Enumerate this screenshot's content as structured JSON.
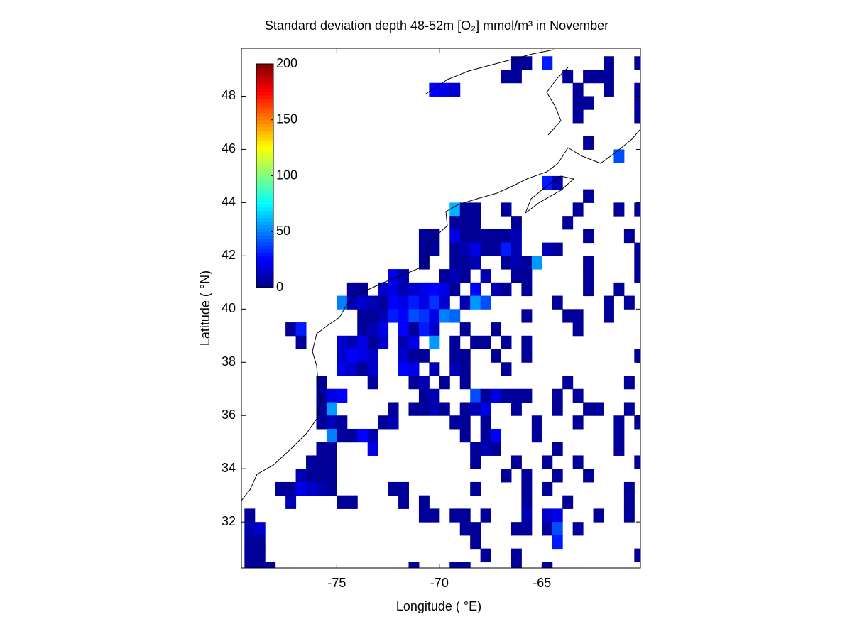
{
  "chart_data": {
    "type": "heatmap",
    "title": "Standard deviation depth 48-52m [O₂] mmol/m³ in November",
    "x_label": "Longitude ( °E)",
    "y_label": "Latitude ( °N)",
    "xlim": [
      -79.65,
      -60.2
    ],
    "ylim": [
      30.27,
      49.8
    ],
    "xticks": [
      -75,
      -70,
      -65
    ],
    "yticks": [
      32,
      34,
      36,
      38,
      40,
      42,
      44,
      46,
      48
    ],
    "clim": [
      0,
      200
    ],
    "cticks": [
      0,
      50,
      100,
      150,
      200
    ],
    "colormap": "jet",
    "rows": [
      {
        "lat": 49.25,
        "lon": [
          -66.25,
          -65.75,
          -64.75,
          -61.75,
          -60.25
        ],
        "values": [
          5,
          5,
          30,
          5,
          5
        ]
      },
      {
        "lat": 48.75,
        "lon": [
          -66.75,
          -66.25,
          -63.75,
          -62.75,
          -62.25,
          -61.75
        ],
        "values": [
          5,
          5,
          5,
          5,
          5,
          5
        ]
      },
      {
        "lat": 48.25,
        "lon": [
          -70.25,
          -69.75,
          -69.25,
          -63.25,
          -61.75,
          -60.25
        ],
        "values": [
          25,
          20,
          15,
          5,
          5,
          5
        ]
      },
      {
        "lat": 47.75,
        "lon": [
          -63.25,
          -62.75,
          -60.25
        ],
        "values": [
          5,
          5,
          5
        ]
      },
      {
        "lat": 47.25,
        "lon": [
          -63.25,
          -60.25
        ],
        "values": [
          5,
          5
        ]
      },
      {
        "lat": 46.25,
        "lon": [
          -62.75
        ],
        "values": [
          5
        ]
      },
      {
        "lat": 45.75,
        "lon": [
          -61.25
        ],
        "values": [
          40
        ]
      },
      {
        "lat": 44.75,
        "lon": [
          -64.75,
          -64.25
        ],
        "values": [
          30,
          10
        ]
      },
      {
        "lat": 44.25,
        "lon": [
          -62.75
        ],
        "values": [
          5
        ]
      },
      {
        "lat": 43.75,
        "lon": [
          -69.25,
          -68.75,
          -68.25,
          -66.75,
          -63.25,
          -61.25,
          -60.25
        ],
        "values": [
          60,
          5,
          5,
          5,
          5,
          5,
          5
        ]
      },
      {
        "lat": 43.25,
        "lon": [
          -69.25,
          -68.75,
          -68.25,
          -66.25,
          -63.75
        ],
        "values": [
          5,
          5,
          5,
          5,
          5
        ]
      },
      {
        "lat": 42.75,
        "lon": [
          -70.75,
          -70.25,
          -69.25,
          -68.75,
          -68.25,
          -67.75,
          -67.25,
          -66.75,
          -66.25,
          -62.75,
          -60.75
        ],
        "values": [
          5,
          5,
          20,
          5,
          5,
          5,
          5,
          5,
          10,
          5,
          5
        ]
      },
      {
        "lat": 42.25,
        "lon": [
          -70.75,
          -70.25,
          -69.25,
          -68.75,
          -68.25,
          -67.75,
          -67.25,
          -66.75,
          -66.25,
          -64.75,
          -64.25,
          -60.25
        ],
        "values": [
          5,
          5,
          5,
          10,
          20,
          5,
          5,
          30,
          10,
          10,
          5,
          5
        ]
      },
      {
        "lat": 41.75,
        "lon": [
          -70.75,
          -69.25,
          -68.75,
          -68.25,
          -66.75,
          -66.25,
          -65.75,
          -65.25,
          -62.75,
          -60.25
        ],
        "values": [
          5,
          5,
          5,
          10,
          5,
          10,
          5,
          55,
          5,
          5
        ]
      },
      {
        "lat": 41.25,
        "lon": [
          -72.25,
          -71.75,
          -69.75,
          -69.25,
          -68.75,
          -67.75,
          -66.25,
          -65.75,
          -62.75,
          -60.25
        ],
        "values": [
          20,
          10,
          5,
          10,
          5,
          10,
          5,
          5,
          5,
          5
        ]
      },
      {
        "lat": 40.75,
        "lon": [
          -74.25,
          -73.75,
          -72.75,
          -72.25,
          -71.75,
          -71.25,
          -70.75,
          -70.25,
          -69.75,
          -69.25,
          -68.25,
          -67.25,
          -66.75,
          -65.75,
          -62.75,
          -61.25
        ],
        "values": [
          5,
          5,
          15,
          20,
          10,
          15,
          20,
          25,
          20,
          5,
          25,
          10,
          5,
          5,
          5,
          5
        ]
      },
      {
        "lat": 40.25,
        "lon": [
          -74.75,
          -74.25,
          -73.75,
          -73.25,
          -72.75,
          -72.25,
          -71.75,
          -71.25,
          -70.75,
          -70.25,
          -69.75,
          -68.75,
          -68.25,
          -67.75,
          -64.25,
          -61.75,
          -60.75
        ],
        "values": [
          50,
          10,
          15,
          10,
          5,
          25,
          20,
          30,
          20,
          35,
          15,
          10,
          55,
          40,
          5,
          5,
          5
        ]
      },
      {
        "lat": 39.75,
        "lon": [
          -73.75,
          -73.25,
          -72.75,
          -72.25,
          -71.75,
          -71.25,
          -70.75,
          -70.25,
          -69.75,
          -69.25,
          -65.75,
          -63.75,
          -63.25,
          -61.75
        ],
        "values": [
          5,
          5,
          10,
          30,
          25,
          40,
          35,
          20,
          50,
          45,
          5,
          5,
          5,
          5
        ]
      },
      {
        "lat": 39.25,
        "lon": [
          -77.25,
          -76.75,
          -73.75,
          -73.25,
          -72.75,
          -71.75,
          -71.25,
          -70.75,
          -70.25,
          -68.75,
          -67.25,
          -63.25
        ],
        "values": [
          5,
          30,
          5,
          10,
          20,
          25,
          5,
          30,
          15,
          5,
          5,
          5
        ]
      },
      {
        "lat": 38.75,
        "lon": [
          -76.75,
          -74.75,
          -74.25,
          -73.75,
          -73.25,
          -72.75,
          -71.75,
          -71.25,
          -70.25,
          -69.25,
          -68.25,
          -67.75,
          -66.75,
          -65.75
        ],
        "values": [
          5,
          15,
          10,
          20,
          5,
          15,
          10,
          20,
          55,
          5,
          5,
          5,
          5,
          5
        ]
      },
      {
        "lat": 38.25,
        "lon": [
          -74.75,
          -74.25,
          -73.75,
          -73.25,
          -71.75,
          -71.25,
          -70.75,
          -69.25,
          -68.75,
          -67.25,
          -65.75,
          -60.25
        ],
        "values": [
          15,
          25,
          20,
          15,
          15,
          5,
          5,
          5,
          5,
          5,
          5,
          5
        ]
      },
      {
        "lat": 37.75,
        "lon": [
          -74.75,
          -74.25,
          -73.75,
          -73.25,
          -71.75,
          -71.25,
          -70.25,
          -69.25,
          -68.75,
          -66.75
        ],
        "values": [
          20,
          15,
          5,
          15,
          25,
          20,
          10,
          10,
          5,
          5
        ]
      },
      {
        "lat": 37.25,
        "lon": [
          -75.75,
          -73.25,
          -71.25,
          -70.75,
          -69.75,
          -68.75,
          -63.75,
          -60.75
        ],
        "values": [
          5,
          5,
          5,
          10,
          5,
          5,
          5,
          5
        ]
      },
      {
        "lat": 36.75,
        "lon": [
          -75.75,
          -75.25,
          -74.75,
          -70.75,
          -70.25,
          -68.25,
          -67.75,
          -67.25,
          -66.75,
          -66.25,
          -65.75,
          -64.25,
          -63.25
        ],
        "values": [
          5,
          20,
          25,
          5,
          10,
          40,
          5,
          20,
          5,
          5,
          5,
          5,
          5
        ]
      },
      {
        "lat": 36.25,
        "lon": [
          -75.75,
          -75.25,
          -72.25,
          -71.25,
          -70.75,
          -70.25,
          -69.75,
          -68.75,
          -68.25,
          -67.75,
          -66.25,
          -64.25,
          -62.75,
          -62.25,
          -60.75
        ],
        "values": [
          5,
          55,
          5,
          5,
          5,
          10,
          5,
          5,
          10,
          20,
          5,
          5,
          5,
          5,
          5
        ]
      },
      {
        "lat": 35.75,
        "lon": [
          -75.75,
          -75.25,
          -74.75,
          -72.75,
          -72.25,
          -69.25,
          -68.75,
          -67.75,
          -65.25,
          -63.25,
          -61.25,
          -60.25
        ],
        "values": [
          5,
          10,
          5,
          5,
          10,
          5,
          5,
          5,
          5,
          5,
          5,
          5
        ]
      },
      {
        "lat": 35.25,
        "lon": [
          -75.25,
          -74.75,
          -74.25,
          -73.75,
          -73.25,
          -68.75,
          -67.75,
          -67.25,
          -65.25,
          -61.25
        ],
        "values": [
          50,
          5,
          5,
          25,
          10,
          5,
          5,
          25,
          5,
          5
        ]
      },
      {
        "lat": 34.75,
        "lon": [
          -75.75,
          -75.25,
          -73.25,
          -68.25,
          -67.75,
          -67.25,
          -64.25,
          -61.25
        ],
        "values": [
          5,
          5,
          20,
          5,
          10,
          5,
          5,
          5
        ]
      },
      {
        "lat": 34.25,
        "lon": [
          -76.25,
          -75.75,
          -75.25,
          -68.25,
          -66.25,
          -64.75,
          -63.25,
          -60.25
        ],
        "values": [
          5,
          5,
          5,
          5,
          5,
          5,
          5,
          5
        ]
      },
      {
        "lat": 33.75,
        "lon": [
          -76.75,
          -76.25,
          -75.75,
          -75.25,
          -66.75,
          -65.75,
          -64.25,
          -62.75
        ],
        "values": [
          10,
          5,
          5,
          5,
          5,
          5,
          5,
          5
        ]
      },
      {
        "lat": 33.25,
        "lon": [
          -77.75,
          -77.25,
          -76.75,
          -76.25,
          -75.75,
          -75.25,
          -72.25,
          -71.75,
          -68.25,
          -65.75,
          -64.75,
          -60.75
        ],
        "values": [
          5,
          5,
          20,
          15,
          10,
          5,
          5,
          5,
          5,
          5,
          5,
          5
        ]
      },
      {
        "lat": 32.75,
        "lon": [
          -77.25,
          -74.75,
          -74.25,
          -71.75,
          -70.75,
          -65.75,
          -63.75,
          -60.75
        ],
        "values": [
          10,
          5,
          5,
          5,
          5,
          5,
          5,
          5
        ]
      },
      {
        "lat": 32.25,
        "lon": [
          -79.25,
          -70.75,
          -70.25,
          -69.25,
          -68.75,
          -67.75,
          -65.75,
          -64.75,
          -64.25,
          -62.25,
          -60.75
        ],
        "values": [
          5,
          5,
          5,
          5,
          5,
          5,
          10,
          15,
          20,
          5,
          5
        ]
      },
      {
        "lat": 31.75,
        "lon": [
          -79.25,
          -78.75,
          -68.75,
          -68.25,
          -66.25,
          -65.75,
          -64.75,
          -64.25,
          -63.25
        ],
        "values": [
          10,
          15,
          5,
          5,
          5,
          5,
          5,
          40,
          5
        ]
      },
      {
        "lat": 31.25,
        "lon": [
          -79.25,
          -78.75,
          -68.25,
          -64.25
        ],
        "values": [
          5,
          5,
          5,
          30
        ]
      },
      {
        "lat": 30.75,
        "lon": [
          -79.25,
          -78.75,
          -67.75,
          -66.25,
          -60.25
        ],
        "values": [
          5,
          5,
          5,
          5,
          5
        ]
      },
      {
        "lat": 30.25,
        "lon": [
          -79.25,
          -78.75,
          -78.25,
          -71.25,
          -69.25,
          -68.75,
          -66.25,
          -64.75
        ],
        "values": [
          5,
          5,
          5,
          5,
          5,
          5,
          5,
          5
        ]
      }
    ]
  }
}
